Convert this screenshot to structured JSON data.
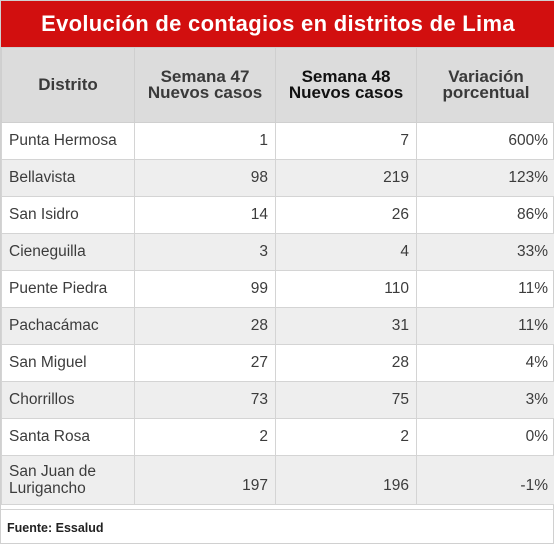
{
  "title": "Evolución de contagios en distritos de Lima",
  "table": {
    "headers": [
      "Distrito",
      "Semana 47 Nuevos casos",
      "Semana 48 Nuevos casos",
      "Variación porcentual"
    ],
    "rows": [
      [
        "Punta Hermosa",
        "1",
        "7",
        "600%"
      ],
      [
        "Bellavista",
        "98",
        "219",
        "123%"
      ],
      [
        "San Isidro",
        "14",
        "26",
        "86%"
      ],
      [
        "Cieneguilla",
        "3",
        "4",
        "33%"
      ],
      [
        "Puente Piedra",
        "99",
        "110",
        "11%"
      ],
      [
        "Pachacámac",
        "28",
        "31",
        "11%"
      ],
      [
        "San Miguel",
        "27",
        "28",
        "4%"
      ],
      [
        "Chorrillos",
        "73",
        "75",
        "3%"
      ],
      [
        "Santa Rosa",
        "2",
        "2",
        "0%"
      ],
      [
        "San Juan de Lurigancho",
        "197",
        "196",
        "-1%"
      ]
    ]
  },
  "source": "Fuente: Essalud",
  "colors": {
    "title_bg": "#d20f0f",
    "header_bg": "#dcdcdc",
    "alt_row_bg": "#eeeeee"
  }
}
